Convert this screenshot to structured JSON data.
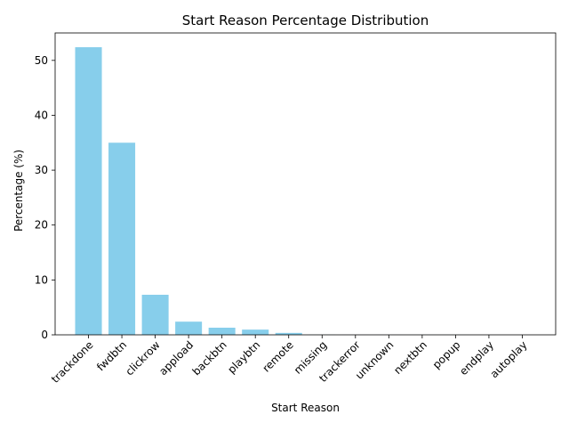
{
  "chart_data": {
    "type": "bar",
    "title": "Start Reason Percentage Distribution",
    "xlabel": "Start Reason",
    "ylabel": "Percentage (%)",
    "categories": [
      "trackdone",
      "fwdbtn",
      "clickrow",
      "appload",
      "backbtn",
      "playbtn",
      "remote",
      "missing",
      "trackerror",
      "unknown",
      "nextbtn",
      "popup",
      "endplay",
      "autoplay"
    ],
    "values": [
      52.4,
      35.0,
      7.3,
      2.4,
      1.3,
      0.95,
      0.35,
      0.02,
      0.01,
      0.01,
      0.005,
      0.003,
      0.002,
      0.001
    ],
    "ylim": [
      0,
      55
    ],
    "yticks": [
      0,
      10,
      20,
      30,
      40,
      50
    ],
    "bar_color": "#87ceeb",
    "grid": false,
    "legend": false
  }
}
